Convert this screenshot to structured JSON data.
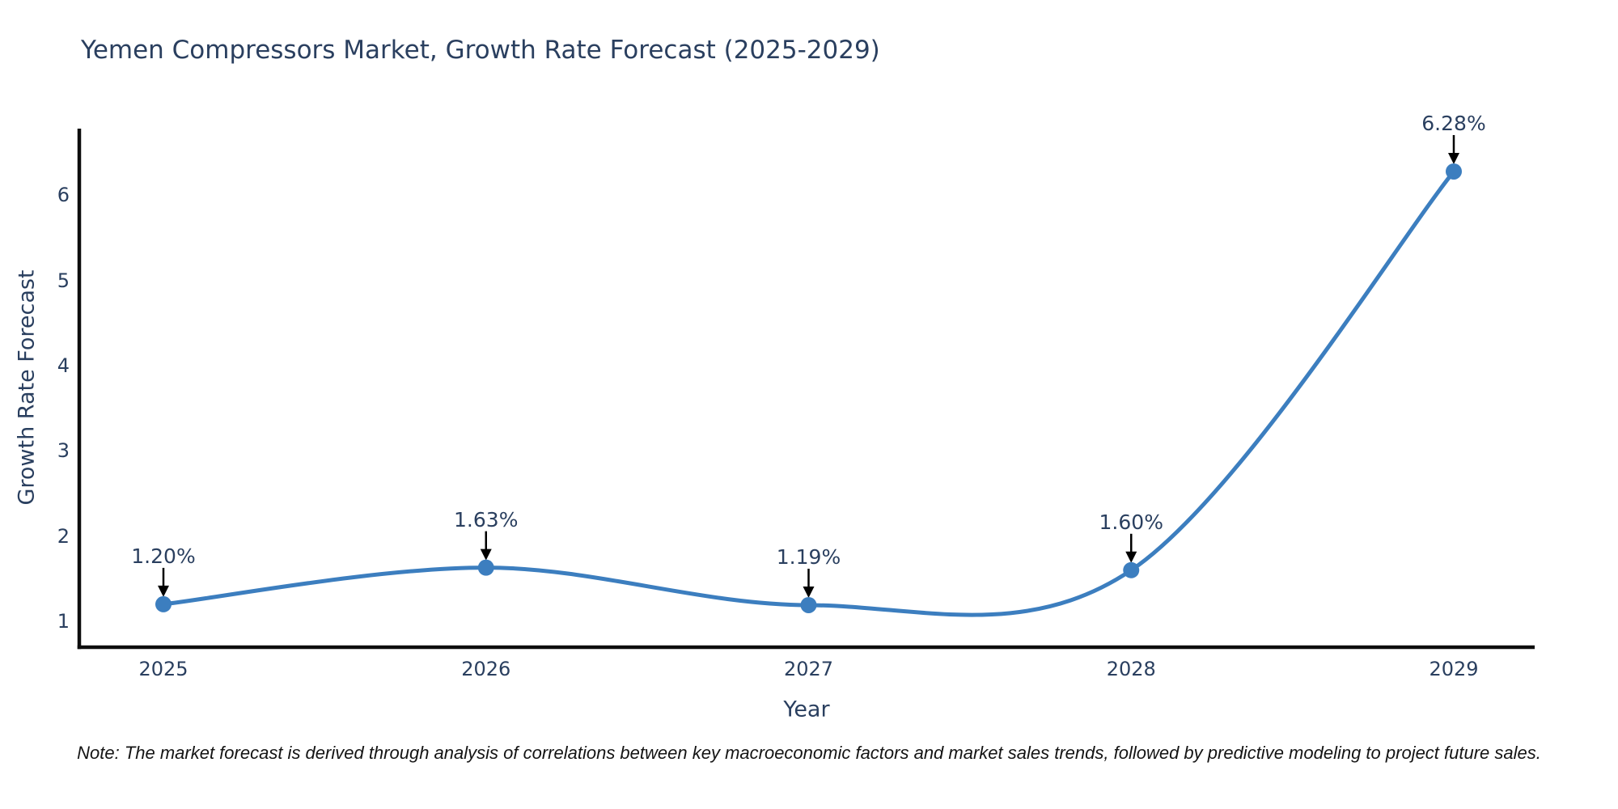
{
  "page": {
    "background": "#ffffff"
  },
  "chart_data": {
    "type": "line",
    "title": "Yemen Compressors Market, Growth Rate Forecast (2025-2029)",
    "xlabel": "Year",
    "ylabel": "Growth Rate Forecast",
    "x": [
      "2025",
      "2026",
      "2027",
      "2028",
      "2029"
    ],
    "series": [
      {
        "name": "Growth Rate Forecast",
        "values": [
          1.2,
          1.63,
          1.19,
          1.6,
          6.28
        ],
        "point_labels": [
          "1.20%",
          "1.63%",
          "1.19%",
          "1.60%",
          "6.28%"
        ]
      }
    ],
    "y_ticks": [
      1,
      2,
      3,
      4,
      5,
      6
    ],
    "ylim": [
      0.696,
      6.783
    ],
    "line_shape": "spline",
    "grid": false,
    "legend_position": "none",
    "line_color": "#3c7ebf",
    "marker_color": "#3c7ebf",
    "annotation_arrow_color": "#000000",
    "text_color": "#2a3f5f",
    "axis_color": "#0d0d0d"
  },
  "note": {
    "text": "Note: The market forecast is derived through analysis of correlations between key macroeconomic factors and market sales trends, followed by predictive modeling to project future sales."
  }
}
